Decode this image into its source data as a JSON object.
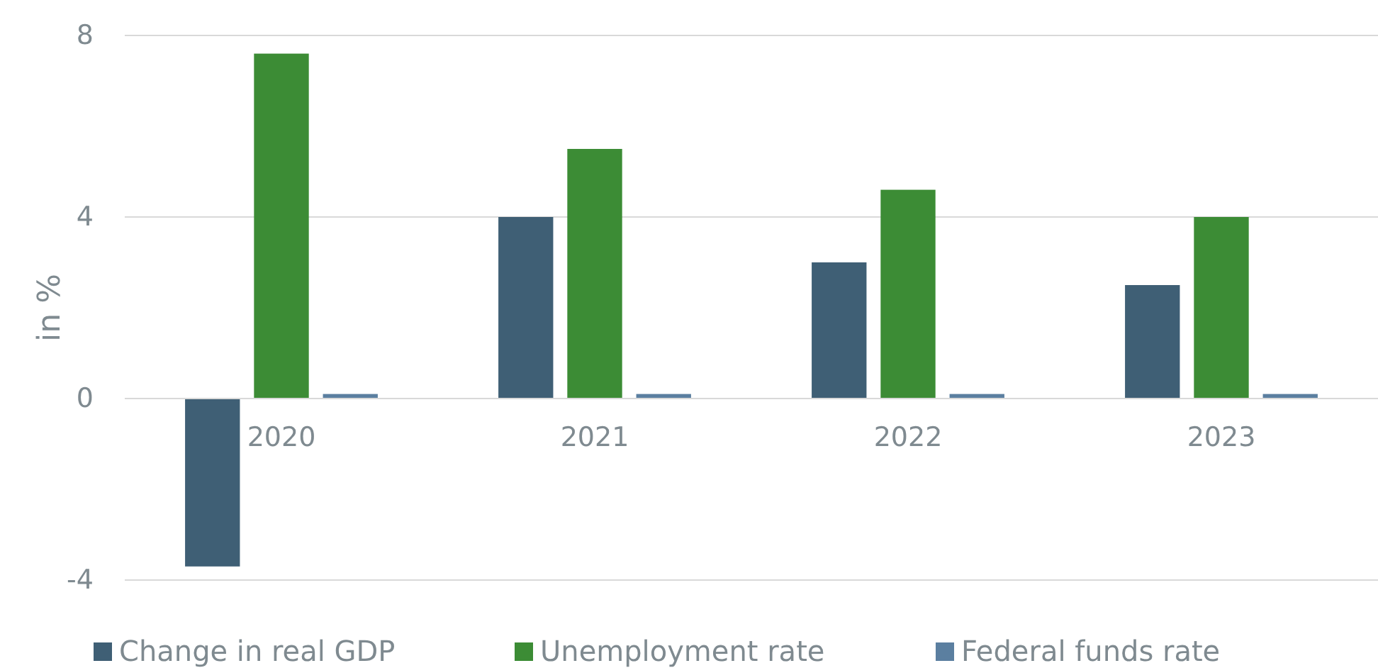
{
  "chart_data": {
    "type": "bar",
    "ylabel": "in %",
    "categories": [
      "2020",
      "2021",
      "2022",
      "2023"
    ],
    "series": [
      {
        "name": "Change in real GDP",
        "color": "#3f5f75",
        "values": [
          -3.7,
          4.0,
          3.0,
          2.5
        ]
      },
      {
        "name": "Unemployment rate",
        "color": "#3c8c35",
        "values": [
          7.6,
          5.5,
          4.6,
          4.0
        ]
      },
      {
        "name": "Federal funds rate",
        "color": "#5b7fa0",
        "values": [
          0.1,
          0.1,
          0.1,
          0.1
        ]
      }
    ],
    "ylim": [
      -4,
      8
    ],
    "yticks": [
      -4,
      0,
      4,
      8
    ],
    "grid": "y",
    "legend": "bottom"
  }
}
